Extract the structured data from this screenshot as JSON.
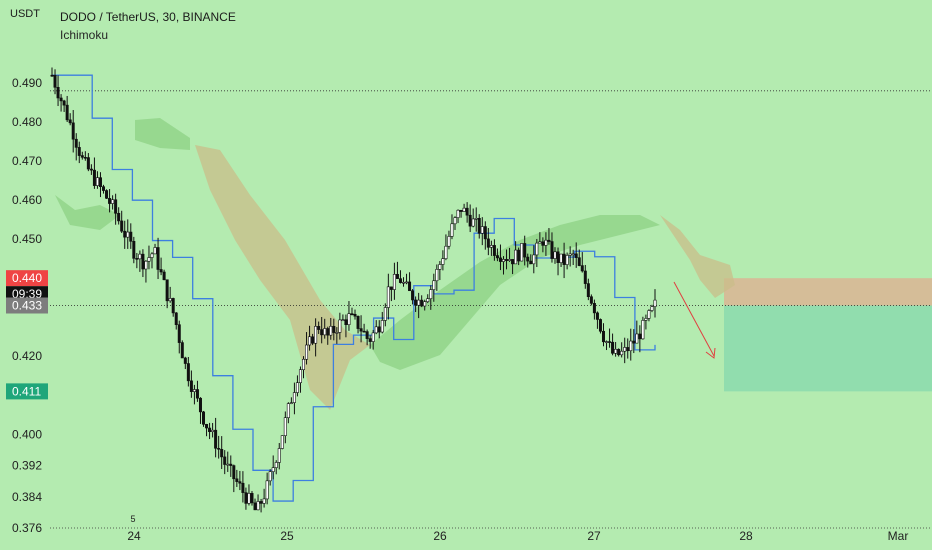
{
  "header": {
    "symbol_line": "DODO / TetherUS, 30, BINANCE",
    "indicator": "Ichimoku"
  },
  "axis": {
    "unit": "USDT",
    "y_ticks": [
      "0.490",
      "0.480",
      "0.470",
      "0.460",
      "0.450",
      "0.420",
      "0.400",
      "0.392",
      "0.384",
      "0.376"
    ],
    "x_ticks": [
      "24",
      "25",
      "26",
      "27",
      "28",
      "Mar"
    ],
    "x_minor_tick": "5"
  },
  "badges": {
    "stop_price": "0.440",
    "countdown": "09:39",
    "current_price": "0.433",
    "target_price": "0.411"
  },
  "colors": {
    "background": "#b4ebb0",
    "candle": "#111111",
    "base_line": "#3d7fe0",
    "cloud_green": "#8ed184",
    "cloud_brown": "#c9bd8a",
    "stop_zone": "#d8b896",
    "target_zone": "#8fdcae",
    "stop_badge": "#ef4444",
    "countdown_badge": "#111111",
    "price_badge": "#7d7d7d",
    "target_badge": "#1fa67a",
    "arrow": "#e04040"
  },
  "chart_data": {
    "type": "candlestick",
    "series": [
      {
        "name": "Ichimoku",
        "kind": "base_line"
      },
      {
        "kind": "cloud"
      }
    ],
    "x": [
      "24",
      "25",
      "26",
      "27",
      "28",
      "Mar"
    ],
    "ylim": [
      0.373,
      0.497
    ],
    "close_path": [
      0.492,
      0.485,
      0.478,
      0.47,
      0.466,
      0.462,
      0.458,
      0.452,
      0.447,
      0.444,
      0.447,
      0.438,
      0.43,
      0.418,
      0.41,
      0.403,
      0.398,
      0.392,
      0.388,
      0.384,
      0.38,
      0.386,
      0.395,
      0.405,
      0.415,
      0.422,
      0.428,
      0.425,
      0.428,
      0.43,
      0.428,
      0.424,
      0.428,
      0.438,
      0.44,
      0.436,
      0.434,
      0.437,
      0.444,
      0.452,
      0.458,
      0.455,
      0.452,
      0.448,
      0.446,
      0.445,
      0.447,
      0.445,
      0.45,
      0.446,
      0.444,
      0.446,
      0.44,
      0.433,
      0.425,
      0.42,
      0.421,
      0.424,
      0.428,
      0.433
    ],
    "position": {
      "side": "short",
      "entry": 0.433,
      "stop": 0.44,
      "target": 0.411
    },
    "horizontal_levels": [
      0.488,
      0.376
    ],
    "grid": false,
    "legend": "none"
  }
}
